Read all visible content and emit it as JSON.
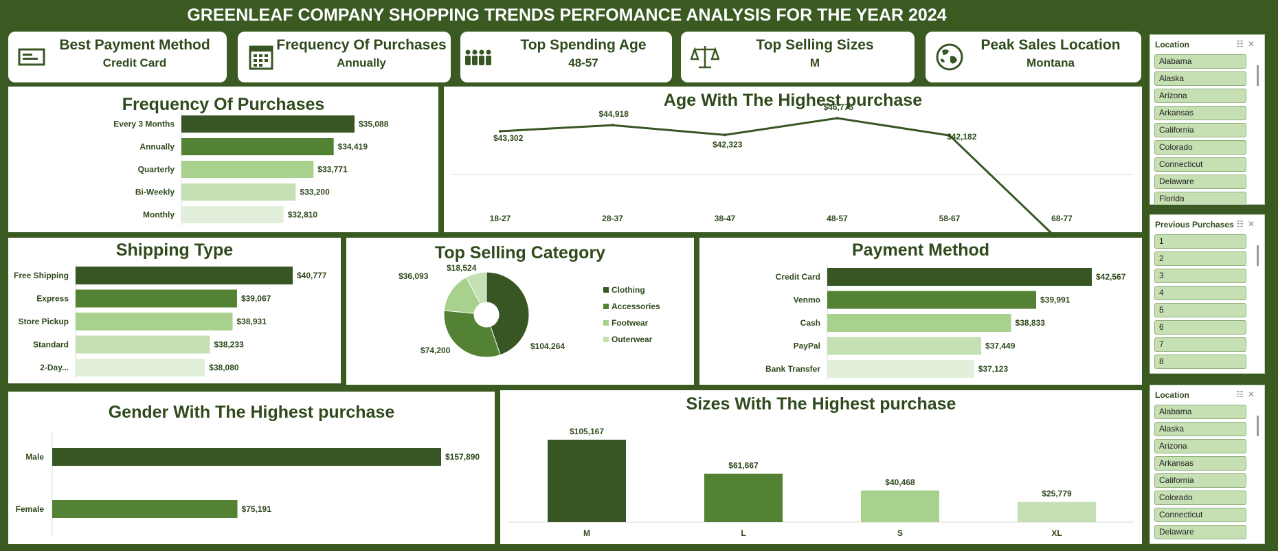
{
  "title": "GREENLEAF COMPANY SHOPPING TRENDS PERFOMANCE ANALYSIS FOR THE YEAR 2024",
  "colors": {
    "background": "#3a5a22",
    "shades": [
      "#375623",
      "#548235",
      "#a9d18e",
      "#c5e0b4",
      "#e2efda"
    ]
  },
  "kpis": [
    {
      "title": "Best Payment Method",
      "value": "Credit Card",
      "icon": "check-card-icon"
    },
    {
      "title": "Frequency Of Purchases",
      "value": "Annually",
      "icon": "calendar-icon"
    },
    {
      "title": "Top Spending Age",
      "value": "48-57",
      "icon": "people-group-icon"
    },
    {
      "title": "Top Selling Sizes",
      "value": "M",
      "icon": "scale-icon"
    },
    {
      "title": "Peak Sales Location",
      "value": "Montana",
      "icon": "globe-icon"
    }
  ],
  "slicers": [
    {
      "header": "Location",
      "items": [
        "Alabama",
        "Alaska",
        "Arizona",
        "Arkansas",
        "California",
        "Colorado",
        "Connecticut",
        "Delaware",
        "Florida"
      ]
    },
    {
      "header": "Previous Purchases",
      "items": [
        "1",
        "2",
        "3",
        "4",
        "5",
        "6",
        "7",
        "8"
      ]
    },
    {
      "header": "Location",
      "items": [
        "Alabama",
        "Alaska",
        "Arizona",
        "Arkansas",
        "California",
        "Colorado",
        "Connecticut",
        "Delaware"
      ]
    }
  ],
  "chart_data": [
    {
      "id": "frequency",
      "type": "bar",
      "orientation": "horizontal",
      "title": "Frequency Of Purchases",
      "categories": [
        "Every 3 Months",
        "Annually",
        "Quarterly",
        "Bi-Weekly",
        "Monthly"
      ],
      "values": [
        35088,
        34419,
        33771,
        33200,
        32810
      ],
      "labels": [
        "$35,088",
        "$34,419",
        "$33,771",
        "$33,200",
        "$32,810"
      ]
    },
    {
      "id": "age",
      "type": "line",
      "title": "Age With The Highest purchase",
      "categories": [
        "18-27",
        "28-37",
        "38-47",
        "48-57",
        "58-67",
        "68-77"
      ],
      "values": [
        43302,
        44918,
        42323,
        46775,
        42182,
        13581
      ],
      "labels": [
        "$43,302",
        "$44,918",
        "$42,323",
        "$46,775",
        "$42,182",
        "$13,581"
      ]
    },
    {
      "id": "shipping",
      "type": "bar",
      "orientation": "horizontal",
      "title": "Shipping Type",
      "categories": [
        "Free Shipping",
        "Express",
        "Store Pickup",
        "Standard",
        "2-Day..."
      ],
      "values": [
        40777,
        39067,
        38931,
        38233,
        38080
      ],
      "labels": [
        "$40,777",
        "$39,067",
        "$38,931",
        "$38,233",
        "$38,080"
      ]
    },
    {
      "id": "category",
      "type": "pie",
      "title": "Top Selling Category",
      "categories": [
        "Clothing",
        "Accessories",
        "Footwear",
        "Outerwear"
      ],
      "values": [
        104264,
        74200,
        36093,
        18524
      ],
      "labels": [
        "$104,264",
        "$74,200",
        "$36,093",
        "$18,524"
      ],
      "legend": "right"
    },
    {
      "id": "payment",
      "type": "bar",
      "orientation": "horizontal",
      "title": "Payment Method",
      "categories": [
        "Credit Card",
        "Venmo",
        "Cash",
        "PayPal",
        "Bank Transfer"
      ],
      "values": [
        42567,
        39991,
        38833,
        37449,
        37123
      ],
      "labels": [
        "$42,567",
        "$39,991",
        "$38,833",
        "$37,449",
        "$37,123"
      ]
    },
    {
      "id": "gender",
      "type": "bar",
      "orientation": "horizontal",
      "title": "Gender With The Highest purchase",
      "categories": [
        "Male",
        "Female"
      ],
      "values": [
        157890,
        75191
      ],
      "labels": [
        "$157,890",
        "$75,191"
      ]
    },
    {
      "id": "sizes",
      "type": "bar",
      "orientation": "vertical",
      "title": "Sizes With The Highest purchase",
      "categories": [
        "M",
        "L",
        "S",
        "XL"
      ],
      "values": [
        105167,
        61667,
        40468,
        25779
      ],
      "labels": [
        "$105,167",
        "$61,667",
        "$40,468",
        "$25,779"
      ]
    }
  ]
}
